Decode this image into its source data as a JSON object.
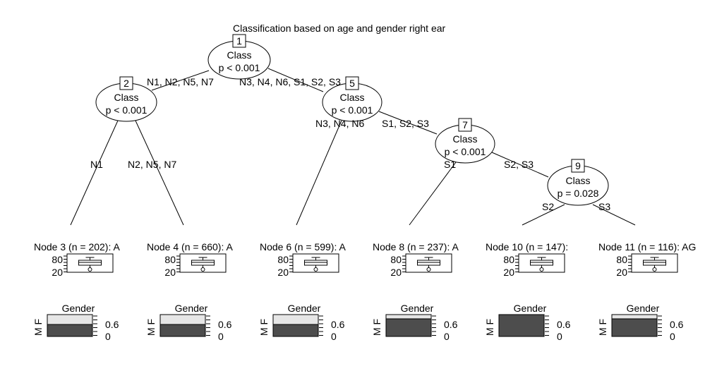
{
  "title": "Classification based on age and gender right ear",
  "inner_nodes": [
    {
      "id": "1",
      "variable": "Class",
      "p": "p < 0.001"
    },
    {
      "id": "2",
      "variable": "Class",
      "p": "p < 0.001"
    },
    {
      "id": "5",
      "variable": "Class",
      "p": "p < 0.001"
    },
    {
      "id": "7",
      "variable": "Class",
      "p": "p < 0.001"
    },
    {
      "id": "9",
      "variable": "Class",
      "p": "p = 0.028"
    }
  ],
  "edges": [
    {
      "from": "1",
      "to": "2",
      "label": "N1, N2, N5, N7"
    },
    {
      "from": "1",
      "to": "5",
      "label": "N3, N4, N6, S1, S2, S3"
    },
    {
      "from": "2",
      "to": "3",
      "label": "N1"
    },
    {
      "from": "2",
      "to": "4",
      "label": "N2, N5, N7"
    },
    {
      "from": "5",
      "to": "6",
      "label": "N3, N4, N6"
    },
    {
      "from": "5",
      "to": "7",
      "label": "S1, S2, S3"
    },
    {
      "from": "7",
      "to": "8",
      "label": "S1"
    },
    {
      "from": "7",
      "to": "9",
      "label": "S2, S3"
    },
    {
      "from": "9",
      "to": "10",
      "label": "S2"
    },
    {
      "from": "9",
      "to": "11",
      "label": "S3"
    }
  ],
  "terminal_nodes": [
    {
      "id": "3",
      "label": "Node 3 (n = 202): A",
      "male_fraction": 0.55
    },
    {
      "id": "4",
      "label": "Node 4 (n = 660): A",
      "male_fraction": 0.55
    },
    {
      "id": "6",
      "label": "Node 6 (n = 599): A",
      "male_fraction": 0.55
    },
    {
      "id": "8",
      "label": "Node 8 (n = 237): A",
      "male_fraction": 0.82
    },
    {
      "id": "10",
      "label": "Node 10 (n = 147):",
      "male_fraction": 1.0
    },
    {
      "id": "11",
      "label": "Node 11 (n = 116): AG",
      "male_fraction": 0.82
    }
  ],
  "age_axis_ticks": [
    "80",
    "20"
  ],
  "gender_panel": {
    "title": "Gender",
    "category_labels": [
      "M",
      "F"
    ],
    "axis_ticks": [
      "0.6",
      "0"
    ]
  },
  "colors": {
    "male_bar": "#4d4d4d",
    "female_bar": "#e6e6e6",
    "line": "#000000"
  }
}
